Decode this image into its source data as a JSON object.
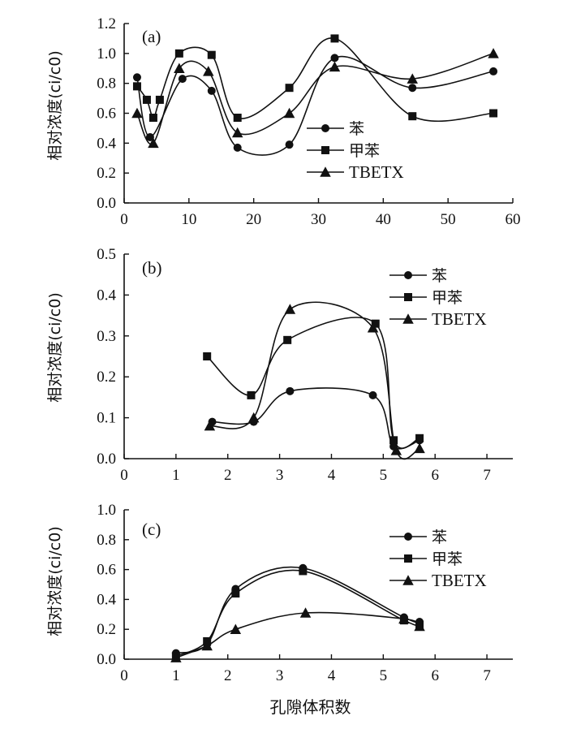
{
  "figure": {
    "xlabel": "孔隙体积数",
    "ylabel": "相对浓度(ci/c0)",
    "legend": [
      "苯",
      "甲苯",
      "TBETX"
    ]
  },
  "chart_data": [
    {
      "type": "line",
      "panel": "(a)",
      "ylabel": "相对浓度(ci/c0)",
      "xlabel": "",
      "xlim": [
        0,
        60
      ],
      "ylim": [
        0,
        1.2
      ],
      "xticks": [
        "0",
        "10",
        "20",
        "30",
        "40",
        "50",
        "60"
      ],
      "yticks": [
        "0.0",
        "0.2",
        "0.4",
        "0.6",
        "0.8",
        "1.0",
        "1.2"
      ],
      "legend_position": "center-right",
      "series": [
        {
          "name": "苯",
          "marker": "circle",
          "x": [
            2,
            4,
            9,
            13.5,
            17.5,
            25.5,
            32.5,
            44.5,
            57
          ],
          "y": [
            0.84,
            0.44,
            0.83,
            0.75,
            0.37,
            0.39,
            0.97,
            0.77,
            0.88
          ]
        },
        {
          "name": "甲苯",
          "marker": "square",
          "x": [
            2,
            3.5,
            4.5,
            5.5,
            8.5,
            13.5,
            17.5,
            25.5,
            32.5,
            44.5,
            57
          ],
          "y": [
            0.78,
            0.69,
            0.57,
            0.69,
            1.0,
            0.99,
            0.57,
            0.77,
            1.1,
            0.58,
            0.6
          ]
        },
        {
          "name": "TBETX",
          "marker": "triangle",
          "x": [
            2,
            4.5,
            8.5,
            13,
            17.5,
            25.5,
            32.5,
            44.5,
            57
          ],
          "y": [
            0.6,
            0.4,
            0.9,
            0.88,
            0.47,
            0.6,
            0.91,
            0.83,
            1.0
          ]
        }
      ]
    },
    {
      "type": "line",
      "panel": "(b)",
      "ylabel": "相对浓度(ci/c0)",
      "xlabel": "",
      "xlim": [
        0,
        7.5
      ],
      "ylim": [
        0,
        0.5
      ],
      "xticks": [
        "0",
        "1",
        "2",
        "3",
        "4",
        "5",
        "6",
        "7"
      ],
      "yticks": [
        "0.0",
        "0.1",
        "0.2",
        "0.3",
        "0.4",
        "0.5"
      ],
      "legend_position": "top-right",
      "series": [
        {
          "name": "苯",
          "marker": "circle",
          "x": [
            1.7,
            2.5,
            3.2,
            4.8,
            5.2,
            5.7
          ],
          "y": [
            0.09,
            0.09,
            0.165,
            0.155,
            0.03,
            0.045
          ]
        },
        {
          "name": "甲苯",
          "marker": "square",
          "x": [
            1.6,
            2.45,
            3.15,
            4.85,
            5.2,
            5.7
          ],
          "y": [
            0.25,
            0.155,
            0.29,
            0.33,
            0.045,
            0.05
          ]
        },
        {
          "name": "TBETX",
          "marker": "triangle",
          "x": [
            1.65,
            2.5,
            3.2,
            4.8,
            5.25,
            5.7
          ],
          "y": [
            0.08,
            0.1,
            0.365,
            0.32,
            0.02,
            0.025
          ]
        }
      ]
    },
    {
      "type": "line",
      "panel": "(c)",
      "ylabel": "相对浓度(ci/c0)",
      "xlabel": "孔隙体积数",
      "xlim": [
        0,
        7.5
      ],
      "ylim": [
        0,
        1.0
      ],
      "xticks": [
        "0",
        "1",
        "2",
        "3",
        "4",
        "5",
        "6",
        "7"
      ],
      "yticks": [
        "0.0",
        "0.2",
        "0.4",
        "0.6",
        "0.8",
        "1.0"
      ],
      "legend_position": "top-right",
      "series": [
        {
          "name": "苯",
          "marker": "circle",
          "x": [
            1.0,
            1.6,
            2.15,
            3.45,
            5.4,
            5.7
          ],
          "y": [
            0.04,
            0.1,
            0.47,
            0.61,
            0.28,
            0.25
          ]
        },
        {
          "name": "甲苯",
          "marker": "square",
          "x": [
            1.0,
            1.6,
            2.15,
            3.45,
            5.4,
            5.7
          ],
          "y": [
            0.02,
            0.12,
            0.44,
            0.59,
            0.26,
            0.23
          ]
        },
        {
          "name": "TBETX",
          "marker": "triangle",
          "x": [
            1.0,
            1.6,
            2.15,
            3.5,
            5.4,
            5.7
          ],
          "y": [
            0.01,
            0.09,
            0.2,
            0.31,
            0.27,
            0.22
          ]
        }
      ]
    }
  ]
}
